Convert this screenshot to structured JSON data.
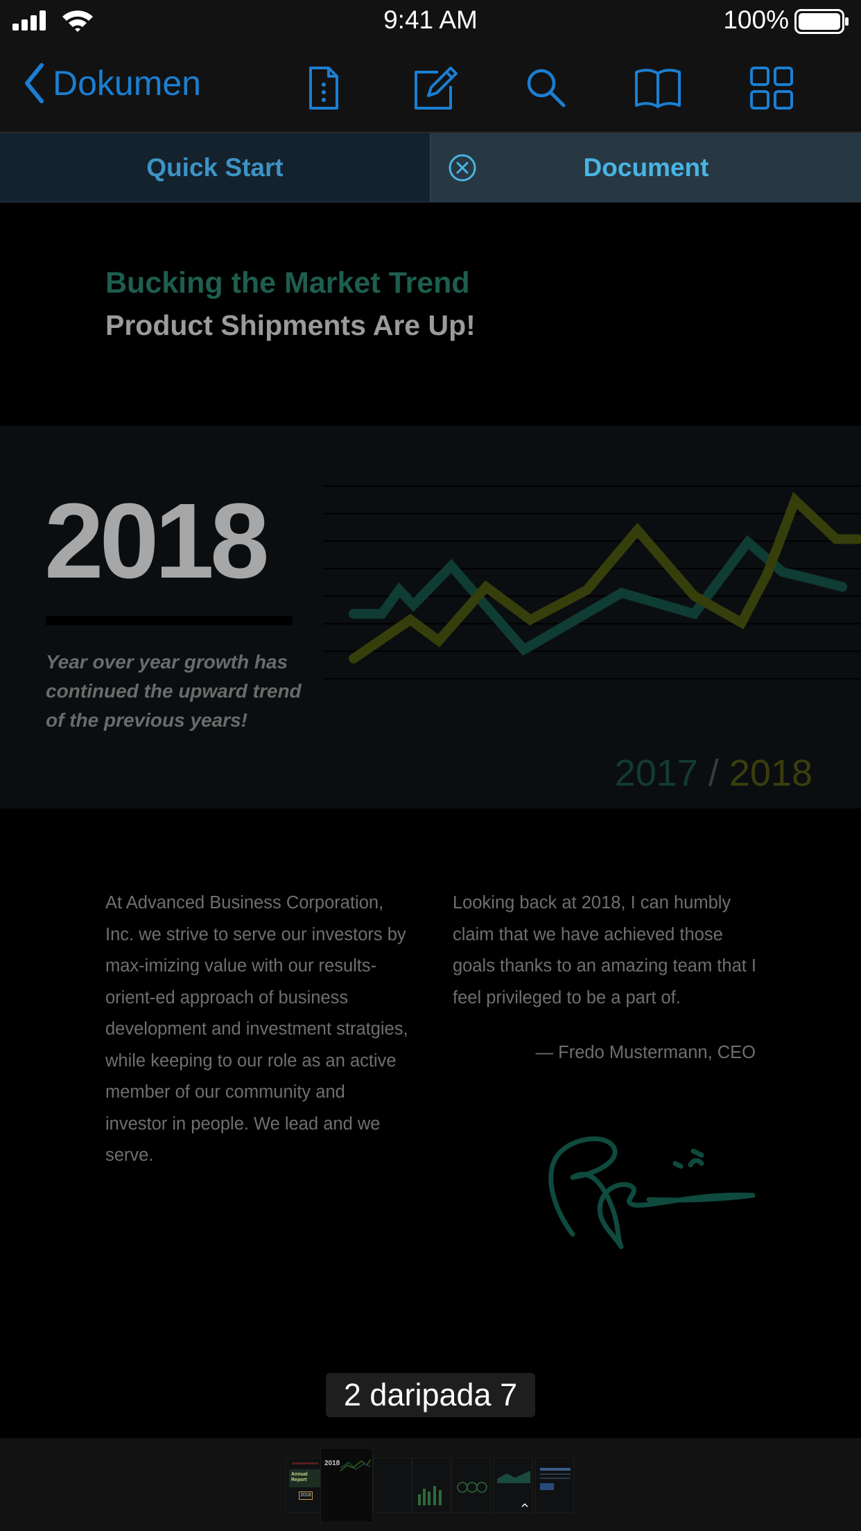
{
  "status_bar": {
    "time": "9:41 AM",
    "battery": "100%"
  },
  "nav": {
    "back_label": "Dokumen",
    "toolbar_icons": [
      "document-info-icon",
      "annotate-icon",
      "search-icon",
      "reader-view-icon",
      "thumbnails-grid-icon"
    ]
  },
  "tabs": [
    {
      "label": "Quick Start",
      "selected": false
    },
    {
      "label": "Document",
      "selected": true
    }
  ],
  "document": {
    "heading": "Bucking the Market Trend",
    "subheading": "Product Shipments Are Up!",
    "big_year": "2018",
    "caption": "Year over year growth has continued the upward trend of the previous years!",
    "left_column": "At Advanced Business Corporation, Inc. we strive to serve our investors  by max-imizing value with our results- orient-ed approach of business development and investment stratgies, while keeping to our role as an active member of our community and investor in people. We lead and we serve.",
    "right_column": "Looking back at 2018, I can humbly claim that we have achieved those goals thanks to an amazing team that I feel privileged to be a part of.",
    "attribution": "— Fredo Mustermann, CEO"
  },
  "chart_data": {
    "type": "line",
    "legend": {
      "first": "2017",
      "separator": "/",
      "second": "2018"
    },
    "grid": true,
    "series": [
      {
        "name": "2017",
        "color": "#0f3c33",
        "points": [
          [
            0,
            3.2
          ],
          [
            0.9,
            3.2
          ],
          [
            1.45,
            4.0
          ],
          [
            1.9,
            3.5
          ],
          [
            3.1,
            4.8
          ],
          [
            5.4,
            2.0
          ],
          [
            8.5,
            3.9
          ],
          [
            10.8,
            3.2
          ],
          [
            12.5,
            5.6
          ],
          [
            13.6,
            4.6
          ],
          [
            14.4,
            4.4
          ],
          [
            15.5,
            4.1
          ]
        ]
      },
      {
        "name": "2018",
        "color": "#363e0b",
        "points": [
          [
            0,
            1.7
          ],
          [
            1.8,
            3.0
          ],
          [
            2.7,
            2.3
          ],
          [
            4.2,
            4.1
          ],
          [
            5.6,
            3.0
          ],
          [
            7.4,
            4.0
          ],
          [
            9.0,
            6.0
          ],
          [
            10.8,
            3.8
          ],
          [
            12.3,
            2.9
          ],
          [
            13.1,
            4.5
          ],
          [
            14.0,
            7.0
          ],
          [
            15.3,
            5.7
          ],
          [
            16.0,
            5.7
          ]
        ]
      }
    ],
    "xlim": [
      0,
      16
    ],
    "ylim": [
      1,
      7.5
    ]
  },
  "page_indicator": "2 daripada 7",
  "thumbnails": {
    "count": 7,
    "selected_index": 1,
    "page1_label": "Annual Report",
    "page1_year": "2018",
    "page2_year": "2018"
  }
}
